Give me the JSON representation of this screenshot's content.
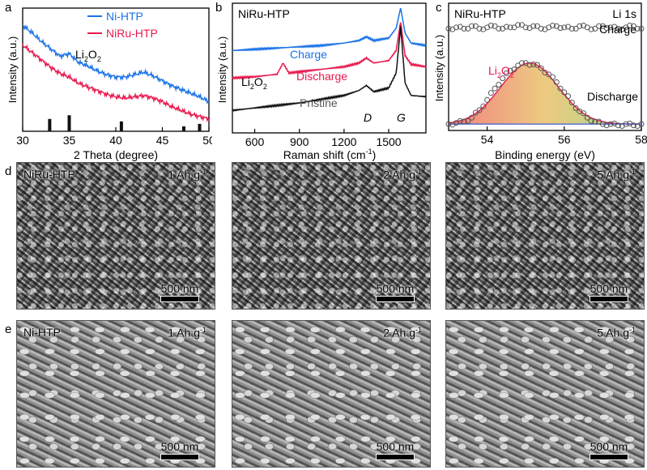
{
  "panels": {
    "a": {
      "letter": "a",
      "chart_data": {
        "type": "line",
        "xlabel": "2 Theta (degree)",
        "ylabel": "Intensity (a.u.)",
        "xlim": [
          30,
          50
        ],
        "xticks": [
          "30",
          "35",
          "40",
          "45",
          "50"
        ],
        "legend": "top-right",
        "series": [
          {
            "name": "Ni-HTP",
            "color": "#1a73e8",
            "x": [
              30,
              31,
              32,
              33,
              34,
              35,
              36,
              37,
              38,
              39,
              40,
              41,
              42,
              43,
              44,
              45,
              46,
              47,
              48,
              49,
              50
            ],
            "y": [
              0.86,
              0.8,
              0.73,
              0.67,
              0.61,
              0.63,
              0.56,
              0.53,
              0.49,
              0.46,
              0.44,
              0.44,
              0.46,
              0.48,
              0.45,
              0.41,
              0.37,
              0.34,
              0.31,
              0.28,
              0.24
            ]
          },
          {
            "name": "NiRu-HTP",
            "color": "#e8194f",
            "x": [
              30,
              31,
              32,
              33,
              34,
              35,
              36,
              37,
              38,
              39,
              40,
              41,
              42,
              43,
              44,
              45,
              46,
              47,
              48,
              49,
              50
            ],
            "y": [
              0.7,
              0.64,
              0.58,
              0.52,
              0.47,
              0.44,
              0.39,
              0.36,
              0.33,
              0.3,
              0.28,
              0.27,
              0.28,
              0.29,
              0.27,
              0.24,
              0.2,
              0.17,
              0.14,
              0.12,
              0.1
            ]
          }
        ],
        "reference_peaks": {
          "x": [
            32.9,
            35.0,
            40.6,
            47.3,
            49.0
          ],
          "h": [
            0.1,
            0.13,
            0.08,
            0.04,
            0.06
          ]
        },
        "annotation": {
          "base": "Li",
          "sub1": "2",
          "mid": "O",
          "sub2": "2"
        }
      }
    },
    "b": {
      "letter": "b",
      "chart_data": {
        "type": "line",
        "title": "NiRu-HTP",
        "xlabel": "Raman shift (cm",
        "xlabel_sup": "-1",
        "xlabel_end": ")",
        "ylabel": "Intensity (a.u.)",
        "xlim": [
          450,
          1750
        ],
        "xticks": [
          "600",
          "900",
          "1200",
          "1500"
        ],
        "series": [
          {
            "name": "Charge",
            "color": "#1a73e8",
            "x": [
              450,
              600,
              750,
              900,
              1050,
              1200,
              1300,
              1350,
              1400,
              1500,
              1550,
              1580,
              1610,
              1650,
              1750
            ],
            "y": [
              0.66,
              0.67,
              0.68,
              0.69,
              0.7,
              0.72,
              0.74,
              0.77,
              0.74,
              0.76,
              0.84,
              1.0,
              0.8,
              0.72,
              0.7
            ]
          },
          {
            "name": "Discharge",
            "color": "#e8194f",
            "x": [
              450,
              600,
              750,
              790,
              830,
              900,
              1050,
              1200,
              1300,
              1350,
              1400,
              1500,
              1550,
              1580,
              1610,
              1650,
              1750
            ],
            "y": [
              0.44,
              0.45,
              0.47,
              0.56,
              0.48,
              0.49,
              0.51,
              0.53,
              0.56,
              0.6,
              0.56,
              0.58,
              0.66,
              0.89,
              0.62,
              0.55,
              0.53
            ]
          },
          {
            "name": "Pristine",
            "color": "#111111",
            "x": [
              450,
              600,
              750,
              900,
              1050,
              1200,
              1300,
              1350,
              1400,
              1500,
              1550,
              1580,
              1610,
              1650,
              1750
            ],
            "y": [
              0.18,
              0.2,
              0.22,
              0.24,
              0.27,
              0.3,
              0.34,
              0.38,
              0.33,
              0.36,
              0.48,
              0.85,
              0.4,
              0.3,
              0.29
            ]
          }
        ],
        "annotations": {
          "li2o2": {
            "base": "Li",
            "sub1": "2",
            "mid": "O",
            "sub2": "2"
          },
          "d_band": "D",
          "g_band": "G"
        }
      }
    },
    "c": {
      "letter": "c",
      "chart_data": {
        "type": "scatter",
        "title": "NiRu-HTP",
        "title_right": "Li 1s",
        "xlabel": "Binding energy (eV)",
        "ylabel": "Intensity (a.u.)",
        "xlim": [
          53,
          58
        ],
        "xticks": [
          "54",
          "56",
          "58"
        ],
        "series": [
          {
            "name": "Charge",
            "color": "#555555",
            "x": [
              53.0,
              53.2,
              53.4,
              53.6,
              53.8,
              54.0,
              54.2,
              54.4,
              54.6,
              54.8,
              55.0,
              55.2,
              55.4,
              55.6,
              55.8,
              56.0,
              56.2,
              56.4,
              56.6,
              56.8,
              57.0,
              57.2,
              57.4,
              57.6,
              57.8,
              58.0
            ],
            "y": [
              0.8,
              0.81,
              0.8,
              0.82,
              0.8,
              0.81,
              0.82,
              0.8,
              0.81,
              0.83,
              0.81,
              0.82,
              0.8,
              0.81,
              0.82,
              0.81,
              0.8,
              0.82,
              0.81,
              0.8,
              0.82,
              0.81,
              0.8,
              0.81,
              0.82,
              0.8
            ]
          },
          {
            "name": "Discharge",
            "color": "#555555",
            "x": [
              53.0,
              53.2,
              53.4,
              53.6,
              53.8,
              54.0,
              54.2,
              54.4,
              54.6,
              54.8,
              55.0,
              55.2,
              55.4,
              55.6,
              55.8,
              56.0,
              56.2,
              56.4,
              56.6,
              56.8,
              57.0,
              57.2,
              57.4,
              57.6,
              57.8,
              58.0
            ],
            "y": [
              0.05,
              0.06,
              0.07,
              0.1,
              0.16,
              0.24,
              0.33,
              0.41,
              0.47,
              0.51,
              0.53,
              0.52,
              0.49,
              0.44,
              0.38,
              0.3,
              0.22,
              0.15,
              0.1,
              0.07,
              0.05,
              0.05,
              0.04,
              0.05,
              0.04,
              0.05
            ]
          }
        ],
        "fit_peak": {
          "center": 55.1,
          "sigma": 0.75,
          "height": 0.48,
          "baseline": 0.05
        },
        "annotations": {
          "li2o2": {
            "base": "Li",
            "sub1": "2",
            "mid": "O",
            "sub2": "2"
          }
        }
      }
    },
    "d": {
      "letter": "d",
      "images": [
        {
          "sample": "NiRu-HTP",
          "capacity": "1 Ah g",
          "sup": "-1",
          "scale": "500 nm"
        },
        {
          "sample": "",
          "capacity": "2 Ah g",
          "sup": "-1",
          "scale": "500 nm"
        },
        {
          "sample": "",
          "capacity": "5 Ah g",
          "sup": "-1",
          "scale": "500 nm"
        }
      ]
    },
    "e": {
      "letter": "e",
      "images": [
        {
          "sample": "Ni-HTP",
          "capacity": "1 Ah g",
          "sup": "-1",
          "scale": "500 nm"
        },
        {
          "sample": "",
          "capacity": "2 Ah g",
          "sup": "-1",
          "scale": "500 nm"
        },
        {
          "sample": "",
          "capacity": "5 Ah g",
          "sup": "-1",
          "scale": "500 nm"
        }
      ]
    }
  }
}
